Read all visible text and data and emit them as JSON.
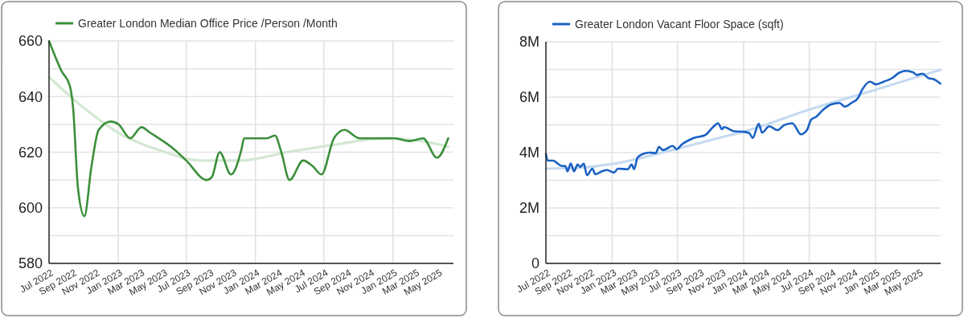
{
  "chart_data": [
    {
      "type": "line",
      "legend": "top left",
      "grid": true,
      "xlim": [
        "2022-07-01",
        "2025-06-11"
      ],
      "xticks": [
        {
          "value": "2022-07-01",
          "label": "Jul 2022"
        },
        {
          "value": "2022-09-01",
          "label": "Sep 2022"
        },
        {
          "value": "2022-11-01",
          "label": "Nov 2022"
        },
        {
          "value": "2023-01-01",
          "label": "Jan 2023"
        },
        {
          "value": "2023-03-01",
          "label": "Mar 2023"
        },
        {
          "value": "2023-05-01",
          "label": "May 2023"
        },
        {
          "value": "2023-07-01",
          "label": "Jul 2023"
        },
        {
          "value": "2023-09-01",
          "label": "Sep 2023"
        },
        {
          "value": "2023-11-01",
          "label": "Nov 2023"
        },
        {
          "value": "2024-01-01",
          "label": "Jan 2024"
        },
        {
          "value": "2024-03-01",
          "label": "Mar 2024"
        },
        {
          "value": "2024-05-01",
          "label": "May 2024"
        },
        {
          "value": "2024-07-01",
          "label": "Jul 2024"
        },
        {
          "value": "2024-09-01",
          "label": "Sep 2024"
        },
        {
          "value": "2024-11-01",
          "label": "Nov 2024"
        },
        {
          "value": "2025-01-01",
          "label": "Jan 2025"
        },
        {
          "value": "2025-03-01",
          "label": "Mar 2025"
        },
        {
          "value": "2025-05-01",
          "label": "May 2025"
        }
      ],
      "ylim": [
        580,
        660
      ],
      "yticks": [
        580,
        600,
        620,
        640,
        660
      ],
      "series": [
        {
          "name": "Greater London Median Office Price /Person /Month",
          "color": "#3b8f3b",
          "x": [
            "2022-07-01",
            "2022-08-04",
            "2022-08-25",
            "2022-09-03",
            "2022-09-16",
            "2022-10-03",
            "2022-10-22",
            "2022-11-10",
            "2022-12-12",
            "2023-01-02",
            "2023-02-02",
            "2023-03-04",
            "2023-03-27",
            "2023-05-30",
            "2023-07-01",
            "2023-08-24",
            "2023-09-07",
            "2023-09-28",
            "2023-10-28",
            "2023-11-25",
            "2023-12-02",
            "2024-01-01",
            "2024-02-01",
            "2024-02-22",
            "2024-03-10",
            "2024-04-01",
            "2024-05-07",
            "2024-06-01",
            "2024-06-25",
            "2024-07-28",
            "2024-08-25",
            "2024-10-04",
            "2025-01-04",
            "2025-02-15",
            "2025-03-22",
            "2025-04-28",
            "2025-05-28"
          ],
          "values": [
            660,
            649,
            644,
            636,
            607,
            597,
            615,
            628,
            631,
            630,
            625,
            629,
            627,
            621,
            617,
            610,
            611,
            620,
            612,
            621,
            625,
            625,
            625,
            626,
            620,
            610,
            617,
            615,
            612,
            625,
            628,
            625,
            625,
            624,
            625,
            618,
            625
          ]
        },
        {
          "type": "line",
          "color": "#d3e8d3",
          "x": [
            "2022-07-01",
            "2022-10-01",
            "2023-01-01",
            "2023-04-25",
            "2023-08-10",
            "2023-11-25",
            "2024-03-25",
            "2024-08-13",
            "2024-10-25",
            "2025-01-04",
            "2025-03-16",
            "2025-05-28"
          ],
          "values": [
            647,
            636,
            627,
            620.5,
            617,
            617,
            620,
            623,
            624.5,
            625,
            624,
            622
          ]
        }
      ]
    },
    {
      "type": "line",
      "legend": "top left",
      "grid": true,
      "xlim": [
        "2022-07-01",
        "2025-07-01"
      ],
      "xticks": [
        {
          "value": "2022-07-01",
          "label": "Jul 2022"
        },
        {
          "value": "2022-09-01",
          "label": "Sep 2022"
        },
        {
          "value": "2022-11-01",
          "label": "Nov 2022"
        },
        {
          "value": "2023-01-01",
          "label": "Jan 2023"
        },
        {
          "value": "2023-03-01",
          "label": "Mar 2023"
        },
        {
          "value": "2023-05-01",
          "label": "May 2023"
        },
        {
          "value": "2023-07-01",
          "label": "Jul 2023"
        },
        {
          "value": "2023-09-01",
          "label": "Sep 2023"
        },
        {
          "value": "2023-11-01",
          "label": "Nov 2023"
        },
        {
          "value": "2024-01-01",
          "label": "Jan 2024"
        },
        {
          "value": "2024-03-01",
          "label": "Mar 2024"
        },
        {
          "value": "2024-05-01",
          "label": "May 2024"
        },
        {
          "value": "2024-07-01",
          "label": "Jul 2024"
        },
        {
          "value": "2024-09-01",
          "label": "Sep 2024"
        },
        {
          "value": "2024-11-01",
          "label": "Nov 2024"
        },
        {
          "value": "2025-01-01",
          "label": "Jan 2025"
        },
        {
          "value": "2025-03-01",
          "label": "Mar 2025"
        },
        {
          "value": "2025-05-01",
          "label": "May 2025"
        }
      ],
      "ylim": [
        0,
        8000000
      ],
      "yticks": [
        0,
        {
          "value": 2000000,
          "label": "2M"
        },
        {
          "value": 4000000,
          "label": "4M"
        },
        {
          "value": 6000000,
          "label": "6M"
        },
        {
          "value": 8000000,
          "label": "8M"
        }
      ],
      "series": [
        {
          "name": "Greater London Vacant Floor Space (sqft)",
          "color": "#1a62c4",
          "x": [
            "2022-07-01",
            "2022-07-06",
            "2022-07-21",
            "2022-08-02",
            "2022-08-13",
            "2022-08-24",
            "2022-08-30",
            "2022-09-08",
            "2022-09-17",
            "2022-09-27",
            "2022-10-04",
            "2022-10-14",
            "2022-10-23",
            "2022-11-07",
            "2022-11-15",
            "2022-12-03",
            "2022-12-18",
            "2023-01-06",
            "2023-01-17",
            "2023-02-13",
            "2023-02-24",
            "2023-03-03",
            "2023-03-12",
            "2023-03-27",
            "2023-04-15",
            "2023-05-02",
            "2023-05-11",
            "2023-05-22",
            "2023-06-18",
            "2023-06-29",
            "2023-07-13",
            "2023-08-16",
            "2023-09-16",
            "2023-10-08",
            "2023-10-22",
            "2023-11-02",
            "2023-11-07",
            "2023-12-06",
            "2024-01-02",
            "2024-01-17",
            "2024-01-26",
            "2024-02-12",
            "2024-02-21",
            "2024-03-12",
            "2024-04-04",
            "2024-04-22",
            "2024-05-15",
            "2024-06-08",
            "2024-06-25",
            "2024-07-06",
            "2024-07-21",
            "2024-08-09",
            "2024-08-31",
            "2024-09-23",
            "2024-10-08",
            "2024-10-26",
            "2024-11-14",
            "2024-11-25",
            "2024-12-17",
            "2025-01-02",
            "2025-01-24",
            "2025-02-19",
            "2025-03-04",
            "2025-03-27",
            "2025-04-15",
            "2025-04-26",
            "2025-05-11",
            "2025-05-29",
            "2025-06-11",
            "2025-06-30"
          ],
          "values": [
            3950000,
            3710000,
            3710000,
            3610000,
            3520000,
            3510000,
            3320000,
            3610000,
            3320000,
            3570000,
            3480000,
            3600000,
            3180000,
            3420000,
            3220000,
            3320000,
            3370000,
            3280000,
            3420000,
            3400000,
            3570000,
            3400000,
            3810000,
            3950000,
            4000000,
            3980000,
            4210000,
            4090000,
            4240000,
            4120000,
            4290000,
            4530000,
            4630000,
            4920000,
            5060000,
            4840000,
            4920000,
            4770000,
            4750000,
            4700000,
            4530000,
            5040000,
            4720000,
            4950000,
            4810000,
            4990000,
            5060000,
            4660000,
            4820000,
            5180000,
            5300000,
            5550000,
            5740000,
            5790000,
            5660000,
            5790000,
            5980000,
            6270000,
            6560000,
            6460000,
            6560000,
            6710000,
            6850000,
            6950000,
            6900000,
            6800000,
            6850000,
            6680000,
            6650000,
            6490000
          ]
        },
        {
          "type": "line",
          "color": "#c6daf1",
          "x": [
            "2022-07-01",
            "2022-10-01",
            "2023-01-01",
            "2023-07-01",
            "2023-10-25",
            "2024-01-01",
            "2024-07-01",
            "2025-01-01",
            "2025-07-01"
          ],
          "values": [
            3420000,
            3450000,
            3590000,
            4140000,
            4530000,
            4750000,
            5550000,
            6270000,
            6990000
          ]
        }
      ]
    }
  ]
}
